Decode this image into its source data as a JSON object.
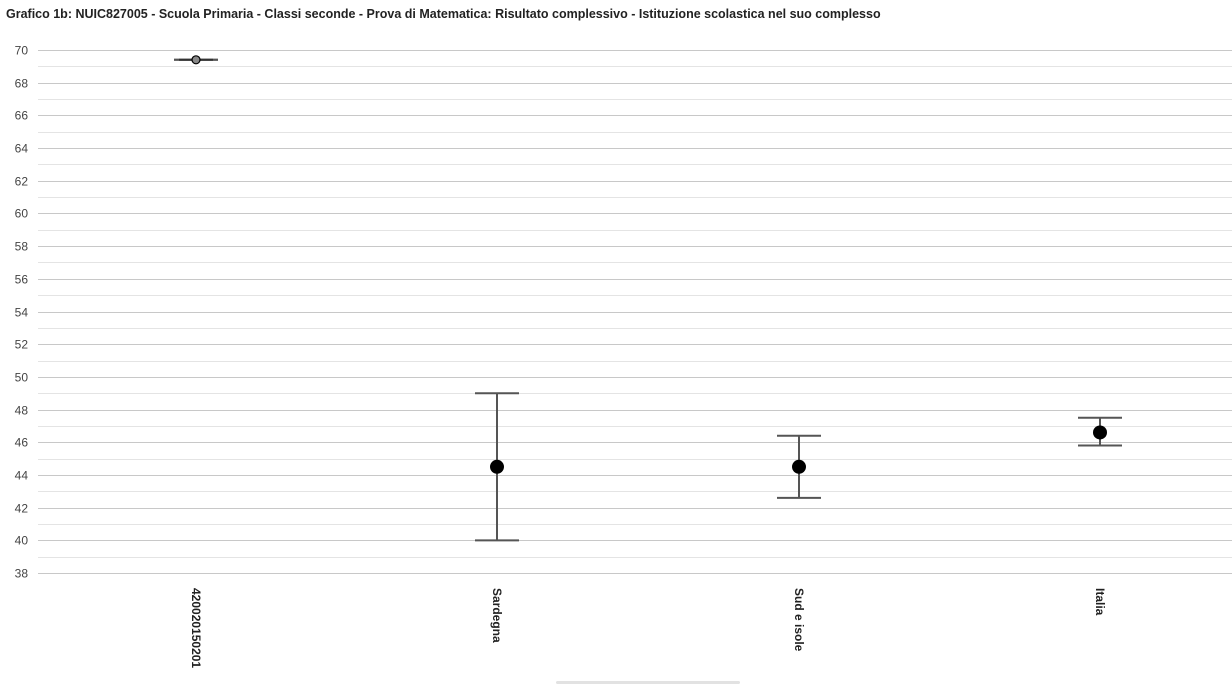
{
  "chart_data": {
    "type": "scatter",
    "title": "Grafico 1b: NUIC827005 - Scuola Primaria - Classi seconde - Prova di Matematica: Risultato complessivo - Istituzione scolastica nel suo complesso",
    "xlabel": "",
    "ylabel": "",
    "ylim": [
      38,
      70
    ],
    "ytick_step": 2,
    "grid": true,
    "minor_grid": true,
    "categories": [
      "420020150201",
      "Sardegna",
      "Sud e isole",
      "Italia"
    ],
    "points": [
      {
        "category": "420020150201",
        "value": 69.4,
        "low": 69.4,
        "high": 69.4,
        "marker": "hollow"
      },
      {
        "category": "Sardegna",
        "value": 44.5,
        "low": 40.0,
        "high": 49.0,
        "marker": "filled"
      },
      {
        "category": "Sud e isole",
        "value": 44.5,
        "low": 42.6,
        "high": 46.4,
        "marker": "filled"
      },
      {
        "category": "Italia",
        "value": 46.6,
        "low": 45.8,
        "high": 47.5,
        "marker": "filled"
      }
    ],
    "colors": {
      "marker": "#000000",
      "errorbar": "#555555",
      "gridline": "#c8c8c8",
      "minor_gridline": "#e4e4e4",
      "tick_text": "#444444"
    }
  }
}
